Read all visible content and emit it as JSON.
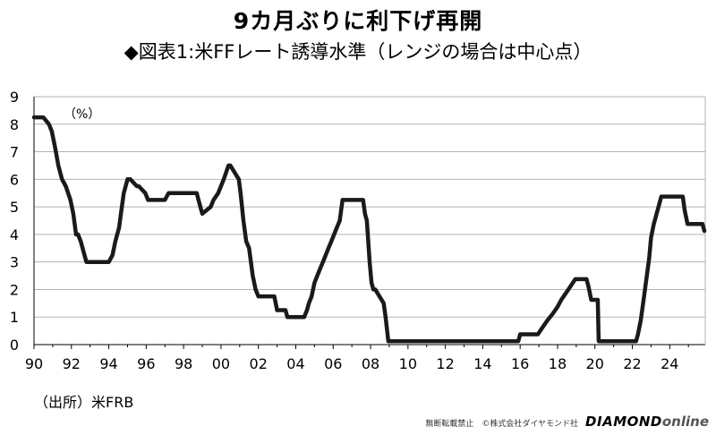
{
  "title": "9カ月ぶりに利下げ再開",
  "subtitle": "◆図表1:米FFレート誘導水準（レンジの場合は中心点）",
  "source": "（出所）米FRB",
  "footer": {
    "copyright": "無断転載禁止　©株式会社ダイヤモンド社",
    "logo_main": "DIAMOND",
    "logo_sub": "online"
  },
  "chart_data": {
    "type": "line",
    "title": "9カ月ぶりに利下げ再開",
    "subtitle": "◆図表1:米FFレート誘導水準（レンジの場合は中心点）",
    "unit_label": "（%）",
    "xlabel": "",
    "ylabel": "",
    "xlim": [
      1990,
      2025.9
    ],
    "ylim": [
      0,
      9
    ],
    "yticks": [
      0,
      1,
      2,
      3,
      4,
      5,
      6,
      7,
      8,
      9
    ],
    "xtick_labels": [
      "90",
      "92",
      "94",
      "96",
      "98",
      "00",
      "02",
      "04",
      "06",
      "08",
      "10",
      "12",
      "14",
      "16",
      "18",
      "20",
      "22",
      "24"
    ],
    "grid": "horizontal",
    "line_color": "#1a1a1a",
    "series": [
      {
        "x": [
          1990.0,
          1990.5,
          1990.8,
          1990.95,
          1991.1,
          1991.3,
          1991.5,
          1991.7,
          1991.95,
          1992.1,
          1992.25,
          1992.35,
          1992.5,
          1992.7,
          1992.8,
          1993.0,
          1994.0,
          1994.2,
          1994.35,
          1994.55,
          1994.65,
          1994.8,
          1995.0,
          1995.15,
          1995.5,
          1995.6,
          1995.95,
          1996.1,
          1997.0,
          1997.2,
          1998.7,
          1998.8,
          1998.9,
          1999.0,
          1999.45,
          1999.6,
          1999.85,
          2000.0,
          2000.15,
          2000.4,
          2000.5,
          2000.95,
          2001.05,
          2001.2,
          2001.35,
          2001.5,
          2001.7,
          2001.85,
          2002.0,
          2002.85,
          2003.0,
          2003.45,
          2003.55,
          2004.45,
          2004.6,
          2004.7,
          2004.85,
          2005.0,
          2005.15,
          2005.3,
          2005.45,
          2005.6,
          2005.75,
          2005.9,
          2006.05,
          2006.2,
          2006.35,
          2006.5,
          2007.6,
          2007.7,
          2007.8,
          2007.95,
          2008.05,
          2008.15,
          2008.25,
          2008.7,
          2008.8,
          2008.95,
          2015.9,
          2016.0,
          2016.95,
          2017.2,
          2017.45,
          2017.75,
          2018.0,
          2018.2,
          2018.45,
          2018.7,
          2018.95,
          2019.55,
          2019.65,
          2019.8,
          2020.15,
          2020.2,
          2022.2,
          2022.3,
          2022.45,
          2022.6,
          2022.75,
          2022.9,
          2023.0,
          2023.15,
          2023.35,
          2023.55,
          2024.7,
          2024.8,
          2024.95,
          2025.75,
          2025.85
        ],
        "y": [
          8.25,
          8.25,
          8.0,
          7.75,
          7.25,
          6.5,
          6.0,
          5.75,
          5.25,
          4.75,
          4.0,
          4.0,
          3.75,
          3.25,
          3.0,
          3.0,
          3.0,
          3.25,
          3.75,
          4.25,
          4.75,
          5.5,
          6.0,
          6.0,
          5.75,
          5.75,
          5.5,
          5.25,
          5.25,
          5.5,
          5.5,
          5.25,
          5.0,
          4.75,
          5.0,
          5.25,
          5.5,
          5.75,
          6.0,
          6.5,
          6.5,
          6.0,
          5.5,
          4.5,
          3.75,
          3.5,
          2.5,
          2.0,
          1.75,
          1.75,
          1.25,
          1.25,
          1.0,
          1.0,
          1.25,
          1.5,
          1.75,
          2.25,
          2.5,
          2.75,
          3.0,
          3.25,
          3.5,
          3.75,
          4.0,
          4.25,
          4.5,
          5.25,
          5.25,
          4.75,
          4.5,
          3.0,
          2.25,
          2.0,
          2.0,
          1.5,
          1.0,
          0.125,
          0.125,
          0.375,
          0.375,
          0.625,
          0.875,
          1.125,
          1.375,
          1.625,
          1.875,
          2.125,
          2.375,
          2.375,
          2.125,
          1.625,
          1.625,
          0.125,
          0.125,
          0.375,
          0.875,
          1.625,
          2.375,
          3.125,
          3.875,
          4.375,
          4.875,
          5.375,
          5.375,
          4.875,
          4.375,
          4.375,
          4.125
        ]
      }
    ]
  }
}
